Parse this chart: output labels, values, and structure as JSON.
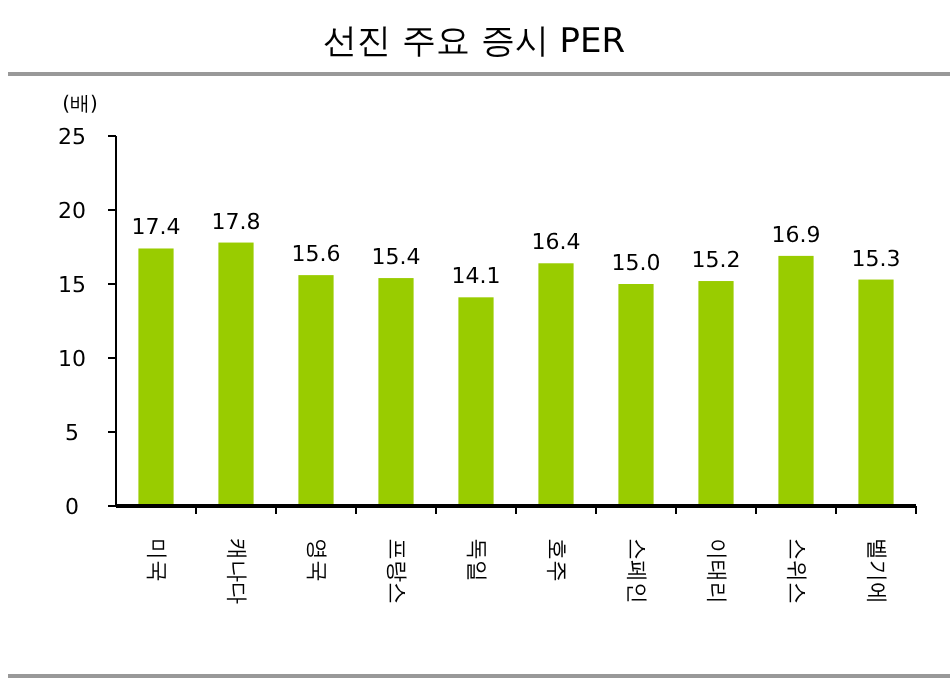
{
  "chart_data": {
    "type": "bar",
    "title": "선진 주요 증시 PER",
    "ylabel": "(배)",
    "categories": [
      "미국",
      "캐나다",
      "영국",
      "프랑스",
      "독일",
      "호주",
      "스페인",
      "이태리",
      "스위스",
      "벨기에"
    ],
    "values": [
      17.4,
      17.8,
      15.6,
      15.4,
      14.1,
      16.4,
      15.0,
      15.2,
      16.9,
      15.3
    ],
    "color": "#99cc00",
    "ylim": [
      0,
      25
    ],
    "yticks": [
      0,
      5,
      10,
      15,
      20,
      25
    ],
    "grid": false,
    "value_labels": [
      "17.4",
      "17.8",
      "15.6",
      "15.4",
      "14.1",
      "16.4",
      "15.0",
      "15.2",
      "16.9",
      "15.3"
    ]
  }
}
